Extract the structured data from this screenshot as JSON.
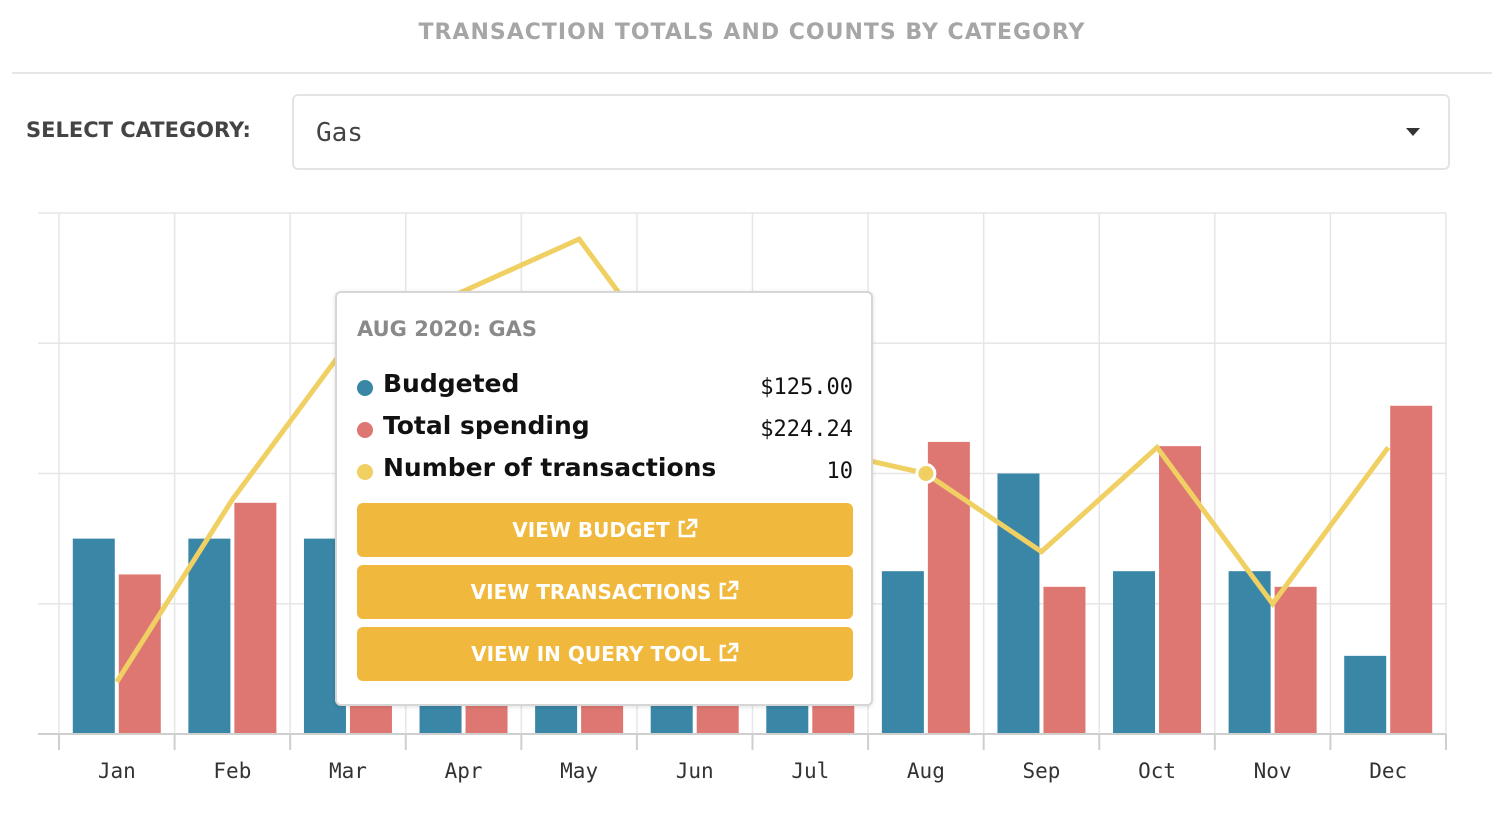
{
  "header": {
    "title": "TRANSACTION TOTALS AND COUNTS BY CATEGORY"
  },
  "filter": {
    "label": "SELECT CATEGORY:",
    "selected": "Gas"
  },
  "colors": {
    "budgeted": "#3a86a6",
    "spending": "#de7772",
    "count": "#f0cf63",
    "button": "#f0b93d"
  },
  "chart_data": {
    "type": "bar",
    "categories": [
      "Jan",
      "Feb",
      "Mar",
      "Apr",
      "May",
      "Jun",
      "Jul",
      "Aug",
      "Sep",
      "Oct",
      "Nov",
      "Dec"
    ],
    "series": [
      {
        "name": "Budgeted",
        "kind": "bar",
        "values": [
          150,
          150,
          150,
          100,
          100,
          100,
          100,
          125,
          200,
          125,
          125,
          60
        ]
      },
      {
        "name": "Total spending",
        "kind": "bar",
        "values": [
          122.5,
          177.5,
          50,
          50,
          50,
          50,
          50,
          224.24,
          113,
          221,
          113,
          252
        ]
      },
      {
        "name": "Number of transactions",
        "kind": "line",
        "values": [
          2,
          9,
          15,
          17,
          19,
          13,
          11,
          10,
          7,
          11,
          5,
          11
        ]
      }
    ],
    "ylim_amount": [
      0,
      400
    ],
    "ylim_count": [
      0,
      20
    ],
    "grid": true
  },
  "tooltip": {
    "title": "AUG 2020: GAS",
    "rows": [
      {
        "name": "Budgeted",
        "value": "$125.00"
      },
      {
        "name": "Total spending",
        "value": "$224.24"
      },
      {
        "name": "Number of transactions",
        "value": "10"
      }
    ],
    "buttons": [
      "VIEW BUDGET",
      "VIEW TRANSACTIONS",
      "VIEW IN QUERY TOOL"
    ],
    "active_index": 7
  }
}
